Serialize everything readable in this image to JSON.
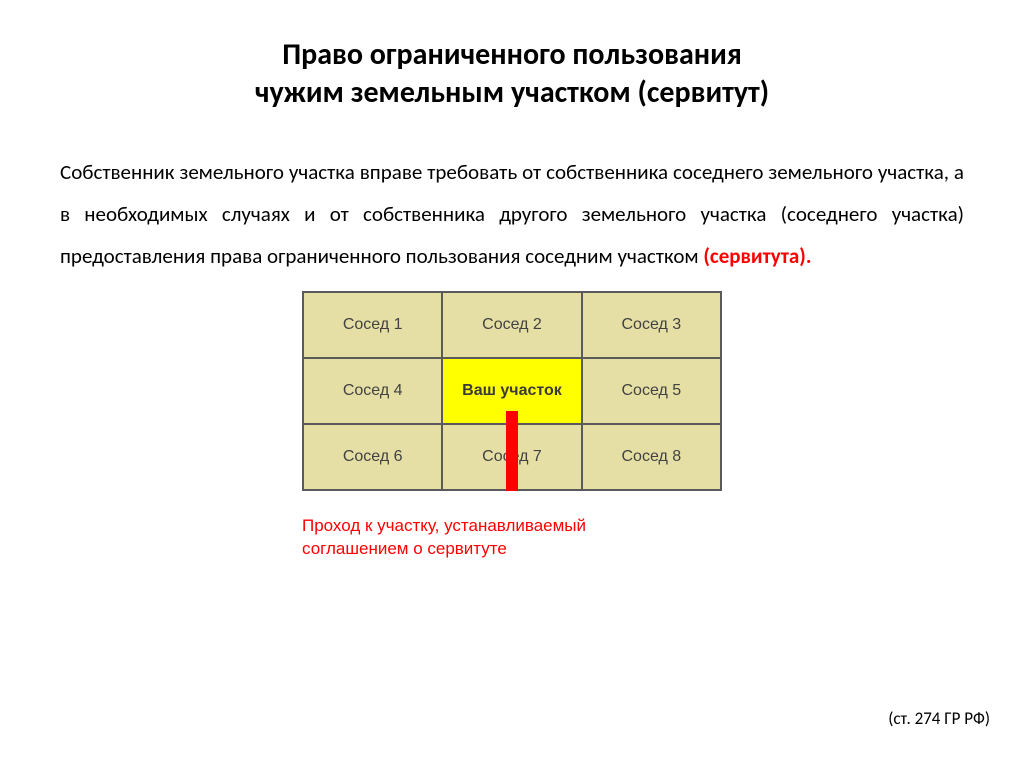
{
  "title": {
    "line1": "Право ограниченного пользования",
    "line2": "чужим земельным участком (сервитут)"
  },
  "paragraph": {
    "main": "Собственник земельного участка вправе требовать от собственника соседнего земельного участка, а в необходимых случаях и от собственника другого земельного участка (соседнего участка) предоставления права ограниченного пользования соседним участком ",
    "highlight": "(сервитута)."
  },
  "grid": {
    "cells": [
      [
        "Сосед 1",
        "Сосед 2",
        "Сосед 3"
      ],
      [
        "Сосед 4",
        "Ваш участок",
        "Сосед 5"
      ],
      [
        "Сосед 6",
        "Сосед 7",
        "Сосед 8"
      ]
    ],
    "cell_bg": "#e6dfa5",
    "center_bg": "#ffff00",
    "border_color": "#5a5a5a",
    "path_color": "#ff0000"
  },
  "caption": {
    "line1": "Проход к участку, устанавливаемый",
    "line2": "соглашением о сервитуте"
  },
  "citation": "(ст. 274 ГР РФ)"
}
